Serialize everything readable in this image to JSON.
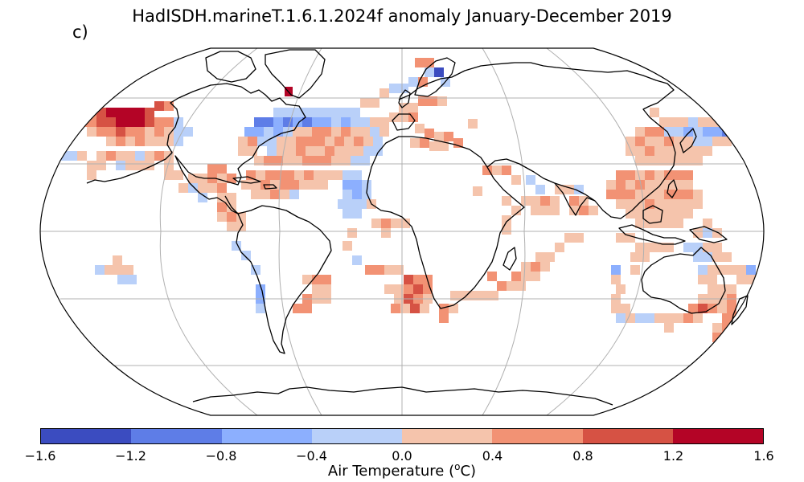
{
  "title": "HadISDH.marineT.1.6.1.2024f anomaly January-December 2019",
  "panel_label": "c)",
  "colorbar": {
    "colors": [
      "#3b4cc0",
      "#5e7de7",
      "#8caffe",
      "#b9d0f9",
      "#f5c4ac",
      "#f29274",
      "#d65244",
      "#b40426"
    ],
    "ticks": [
      "−1.6",
      "−1.2",
      "−0.8",
      "−0.4",
      "0.0",
      "0.4",
      "0.8",
      "1.2",
      "1.6"
    ],
    "label": "Air Temperature (",
    "label_sup": "o",
    "label_end": "C)"
  },
  "map": {
    "projection": "robinson",
    "ocean_color": "#ffffff",
    "coastline_color": "#000000",
    "grid_color": "#b0b0b0"
  }
}
